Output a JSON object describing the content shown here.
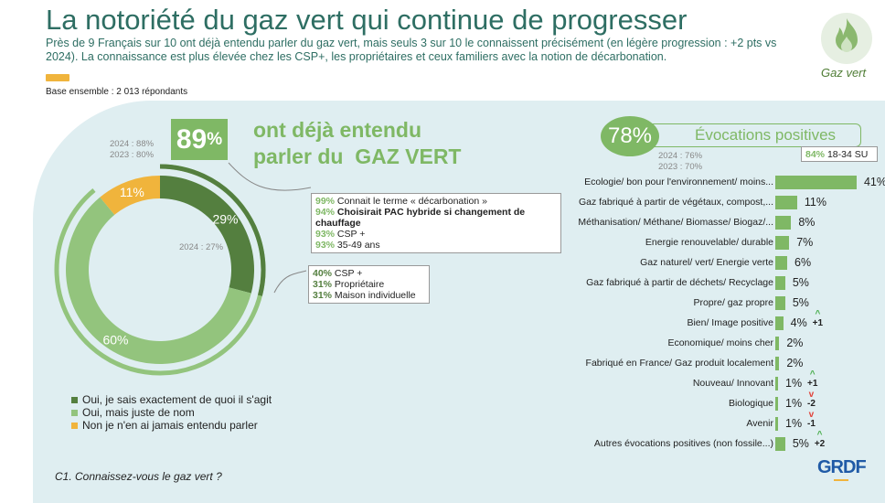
{
  "header": {
    "title": "La notoriété du gaz vert qui continue de progresser",
    "subtitle": "Près de 9 Français sur 10 ont déjà entendu parler du gaz vert, mais seuls 3 sur 10 le connaissent précisément (en légère progression : +2 pts vs 2024). La connaissance est plus élevée chez les CSP+, les propriétaires et ceux familiers avec la notion de décarbonation.",
    "base": "Base ensemble : 2 013 répondants",
    "logo_label": "Gaz vert"
  },
  "left": {
    "headline_value": "89",
    "headline_unit": "%",
    "headline_text1": "ont déjà entendu",
    "headline_text2": "parler du  GAZ VERT",
    "hist1": "2024 : 88%",
    "hist2": "2023 : 80%",
    "hist_29": "2024 : 27%",
    "box1": [
      {
        "v": "99%",
        "t": "Connait le terme « décarbonation »",
        "bold": false
      },
      {
        "v": "94%",
        "t": "Choisirait PAC hybride si changement de chauffage",
        "bold": true
      },
      {
        "v": "93%",
        "t": "CSP +",
        "bold": false
      },
      {
        "v": "93%",
        "t": "35-49 ans",
        "bold": false
      }
    ],
    "box2": [
      {
        "v": "40%",
        "t": "CSP +"
      },
      {
        "v": "31%",
        "t": "Propriétaire"
      },
      {
        "v": "31%",
        "t": "Maison individuelle"
      }
    ],
    "question": "C1. Connaissez-vous le gaz vert ?"
  },
  "chart_data": [
    {
      "type": "pie",
      "donut": true,
      "slices": [
        {
          "label": "Oui, je sais exactement de quoi il s'agit",
          "value": 29,
          "display": "29%",
          "color": "#547f3f"
        },
        {
          "label": "Oui, mais juste de nom",
          "value": 60,
          "display": "60%",
          "color": "#93c47d"
        },
        {
          "label": "Non je n'en ai jamais entendu parler",
          "value": 11,
          "display": "11%",
          "color": "#f0b43c"
        }
      ]
    },
    {
      "type": "bar",
      "orientation": "horizontal",
      "title": "Évocations positives",
      "headline": "78%",
      "hist1": "2024 : 76%",
      "hist2": "2023 : 70%",
      "callout_value": "84%",
      "callout_text": "18-34 SU",
      "unit": "%",
      "categories": [
        "Ecologie/ bon pour l'environnement/ moins...",
        "Gaz fabriqué à partir de végétaux, compost,...",
        "Méthanisation/ Méthane/ Biomasse/ Biogaz/...",
        "Energie renouvelable/ durable",
        "Gaz naturel/ vert/ Energie verte",
        "Gaz fabriqué à partir de déchets/ Recyclage",
        "Propre/ gaz propre",
        "Bien/ Image positive",
        "Economique/ moins cher",
        "Fabriqué en France/ Gaz produit localement",
        "Nouveau/ Innovant",
        "Biologique",
        "Avenir",
        "Autres évocations positives (non fossile...)"
      ],
      "values": [
        41,
        11,
        8,
        7,
        6,
        5,
        5,
        4,
        2,
        2,
        1,
        1,
        1,
        5
      ],
      "deltas": [
        "",
        "",
        "",
        "",
        "",
        "",
        "",
        "+1",
        "",
        "",
        "+1",
        "-2",
        "-1",
        "+2"
      ]
    }
  ],
  "colors": {
    "accent": "#7fb865",
    "dark": "#547f3f",
    "yellow": "#f0b43c",
    "panel": "#dfeef1",
    "title": "#2e6e63"
  },
  "brand": "GRDF"
}
